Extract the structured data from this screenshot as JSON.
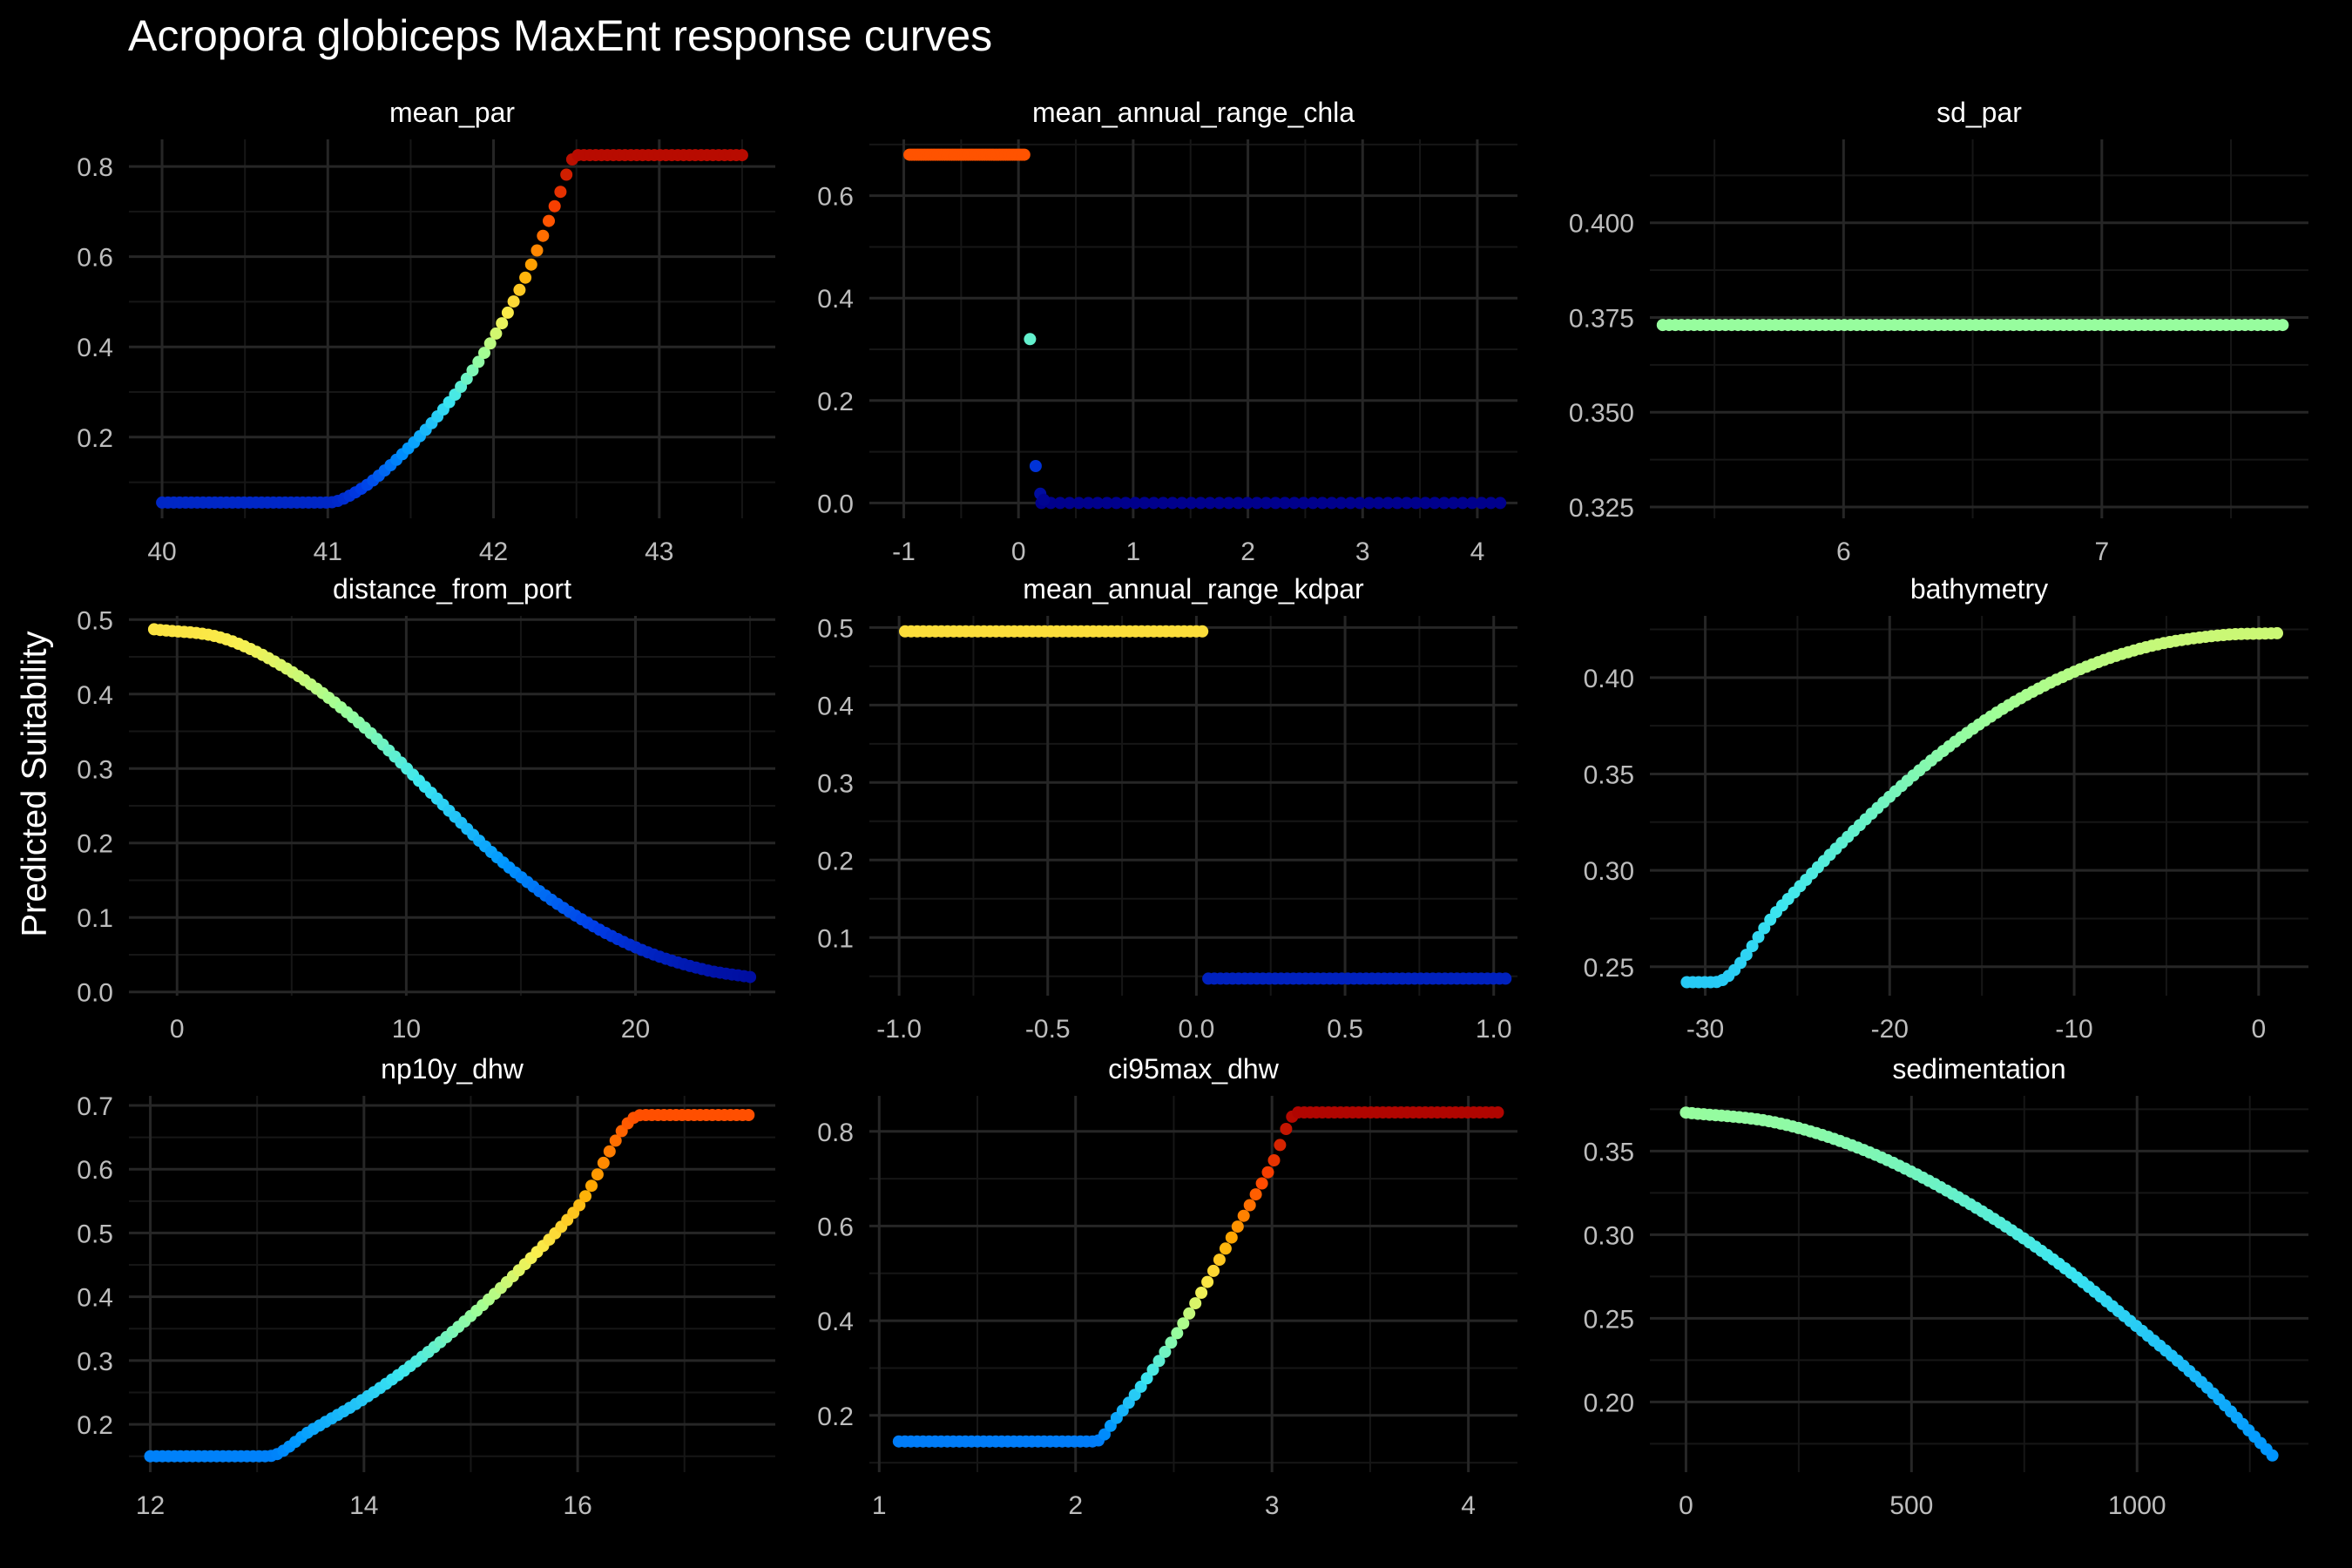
{
  "title": "Acropora globiceps MaxEnt response curves",
  "ylabel": "Predicted Suitability",
  "chart_data": [
    {
      "type": "scatter",
      "title": "mean_par",
      "xlim": [
        39.8,
        43.7
      ],
      "ylim": [
        0.02,
        0.86
      ],
      "xticks": [
        40,
        41,
        42,
        43
      ],
      "xtick_labels": [
        "40",
        "41",
        "42",
        "43"
      ],
      "yticks": [
        0.2,
        0.4,
        0.6,
        0.8
      ],
      "ytick_labels": [
        "0.2",
        "0.4",
        "0.6",
        "0.8"
      ],
      "color_by": "y",
      "color_range": [
        0,
        0.85
      ],
      "x": [
        40,
        40.5,
        41,
        41.2,
        41.4,
        41.6,
        41.8,
        42,
        42.2,
        42.4,
        42.5,
        43,
        43.5
      ],
      "y": [
        0.055,
        0.055,
        0.055,
        0.085,
        0.145,
        0.22,
        0.31,
        0.42,
        0.56,
        0.74,
        0.825,
        0.825,
        0.825
      ]
    },
    {
      "type": "scatter",
      "title": "mean_annual_range_chla",
      "xlim": [
        -1.3,
        4.35
      ],
      "ylim": [
        -0.03,
        0.71
      ],
      "xticks": [
        -1,
        0,
        1,
        2,
        3,
        4
      ],
      "xtick_labels": [
        "-1",
        "0",
        "1",
        "2",
        "3",
        "4"
      ],
      "yticks": [
        0,
        0.2,
        0.4,
        0.6
      ],
      "ytick_labels": [
        "0.0",
        "0.2",
        "0.4",
        "0.6"
      ],
      "color_by": "y",
      "color_range": [
        0,
        0.85
      ],
      "segments": [
        {
          "x": [
            -0.95,
            0.05
          ],
          "y": [
            0.68,
            0.68
          ]
        },
        {
          "x": [
            0.2,
            4.2
          ],
          "y": [
            0.0,
            0.0
          ]
        }
      ],
      "points": [
        {
          "x": 0.1,
          "y": 0.32
        },
        {
          "x": 0.15,
          "y": 0.072
        },
        {
          "x": 0.19,
          "y": 0.018
        },
        {
          "x": 0.22,
          "y": 0.006
        }
      ]
    },
    {
      "type": "scatter",
      "title": "sd_par",
      "xlim": [
        5.25,
        7.8
      ],
      "ylim": [
        0.322,
        0.422
      ],
      "xticks": [
        6,
        7
      ],
      "xtick_labels": [
        "6",
        "7"
      ],
      "yticks": [
        0.325,
        0.35,
        0.375,
        0.4
      ],
      "ytick_labels": [
        "0.325",
        "0.350",
        "0.375",
        "0.400"
      ],
      "color_by": "y",
      "color_range": [
        0,
        0.85
      ],
      "x": [
        5.3,
        7.7
      ],
      "y": [
        0.373,
        0.373
      ]
    },
    {
      "type": "scatter",
      "title": "distance_from_port",
      "xlim": [
        -2.1,
        26.1
      ],
      "ylim": [
        -0.005,
        0.505
      ],
      "xticks": [
        0,
        10,
        20
      ],
      "xtick_labels": [
        "0",
        "10",
        "20"
      ],
      "yticks": [
        0,
        0.1,
        0.2,
        0.3,
        0.4,
        0.5
      ],
      "ytick_labels": [
        "0.0",
        "0.1",
        "0.2",
        "0.3",
        "0.4",
        "0.5"
      ],
      "color_by": "y",
      "color_range": [
        0,
        0.85
      ],
      "x": [
        -1,
        2,
        5,
        8,
        11,
        14,
        17,
        20,
        23,
        25
      ],
      "y": [
        0.487,
        0.475,
        0.43,
        0.36,
        0.27,
        0.18,
        0.11,
        0.06,
        0.03,
        0.02
      ]
    },
    {
      "type": "scatter",
      "title": "mean_annual_range_kdpar",
      "xlim": [
        -1.1,
        1.08
      ],
      "ylim": [
        0.025,
        0.515
      ],
      "xticks": [
        -1,
        -0.5,
        0,
        0.5,
        1
      ],
      "xtick_labels": [
        "-1.0",
        "-0.5",
        "0.0",
        "0.5",
        "1.0"
      ],
      "yticks": [
        0.1,
        0.2,
        0.3,
        0.4,
        0.5
      ],
      "ytick_labels": [
        "0.1",
        "0.2",
        "0.3",
        "0.4",
        "0.5"
      ],
      "color_by": "y",
      "color_range": [
        0,
        0.85
      ],
      "segments": [
        {
          "x": [
            -0.98,
            0.02
          ],
          "y": [
            0.495,
            0.495
          ]
        },
        {
          "x": [
            0.04,
            1.04
          ],
          "y": [
            0.047,
            0.047
          ]
        }
      ]
    },
    {
      "type": "scatter",
      "title": "bathymetry",
      "xlim": [
        -33,
        2.7
      ],
      "ylim": [
        0.235,
        0.432
      ],
      "xticks": [
        -30,
        -20,
        -10,
        0
      ],
      "xtick_labels": [
        "-30",
        "-20",
        "-10",
        "0"
      ],
      "yticks": [
        0.25,
        0.3,
        0.35,
        0.4
      ],
      "ytick_labels": [
        "0.25",
        "0.30",
        "0.35",
        "0.40"
      ],
      "color_by": "y",
      "color_range": [
        0,
        0.85
      ],
      "x": [
        -31,
        -29.5,
        -26,
        -22,
        -18,
        -14,
        -10,
        -6,
        -2,
        1
      ],
      "y": [
        0.242,
        0.242,
        0.28,
        0.32,
        0.355,
        0.383,
        0.403,
        0.416,
        0.422,
        0.423
      ]
    },
    {
      "type": "scatter",
      "title": "np10y_dhw",
      "xlim": [
        11.8,
        17.85
      ],
      "ylim": [
        0.125,
        0.715
      ],
      "xticks": [
        12,
        14,
        16
      ],
      "xtick_labels": [
        "12",
        "14",
        "16"
      ],
      "yticks": [
        0.2,
        0.3,
        0.4,
        0.5,
        0.6,
        0.7
      ],
      "ytick_labels": [
        "0.2",
        "0.3",
        "0.4",
        "0.5",
        "0.6",
        "0.7"
      ],
      "color_by": "y",
      "color_range": [
        0,
        0.85
      ],
      "x": [
        12,
        13.1,
        13.5,
        14,
        14.5,
        15,
        15.5,
        16,
        16.6,
        17.6
      ],
      "y": [
        0.15,
        0.15,
        0.19,
        0.24,
        0.3,
        0.37,
        0.45,
        0.54,
        0.685,
        0.685
      ]
    },
    {
      "type": "scatter",
      "title": "ci95max_dhw",
      "xlim": [
        0.95,
        4.25
      ],
      "ylim": [
        0.08,
        0.875
      ],
      "xticks": [
        1,
        2,
        3,
        4
      ],
      "xtick_labels": [
        "1",
        "2",
        "3",
        "4"
      ],
      "yticks": [
        0.2,
        0.4,
        0.6,
        0.8
      ],
      "ytick_labels": [
        "0.2",
        "0.4",
        "0.6",
        "0.8"
      ],
      "color_by": "y",
      "color_range": [
        0,
        0.85
      ],
      "x": [
        1.1,
        2.1,
        2.2,
        2.4,
        2.6,
        2.8,
        3.0,
        3.13,
        4.15
      ],
      "y": [
        0.145,
        0.145,
        0.19,
        0.3,
        0.43,
        0.58,
        0.73,
        0.84,
        0.84
      ]
    },
    {
      "type": "scatter",
      "title": "sedimentation",
      "xlim": [
        -80,
        1380
      ],
      "ylim": [
        0.158,
        0.383
      ],
      "xticks": [
        0,
        500,
        1000
      ],
      "xtick_labels": [
        "0",
        "500",
        "1000"
      ],
      "yticks": [
        0.2,
        0.25,
        0.3,
        0.35
      ],
      "ytick_labels": [
        "0.20",
        "0.25",
        "0.30",
        "0.35"
      ],
      "color_by": "y",
      "color_range": [
        0,
        0.85
      ],
      "x": [
        0,
        200,
        400,
        600,
        800,
        1000,
        1150,
        1300
      ],
      "y": [
        0.373,
        0.367,
        0.35,
        0.323,
        0.288,
        0.245,
        0.21,
        0.168
      ]
    }
  ]
}
